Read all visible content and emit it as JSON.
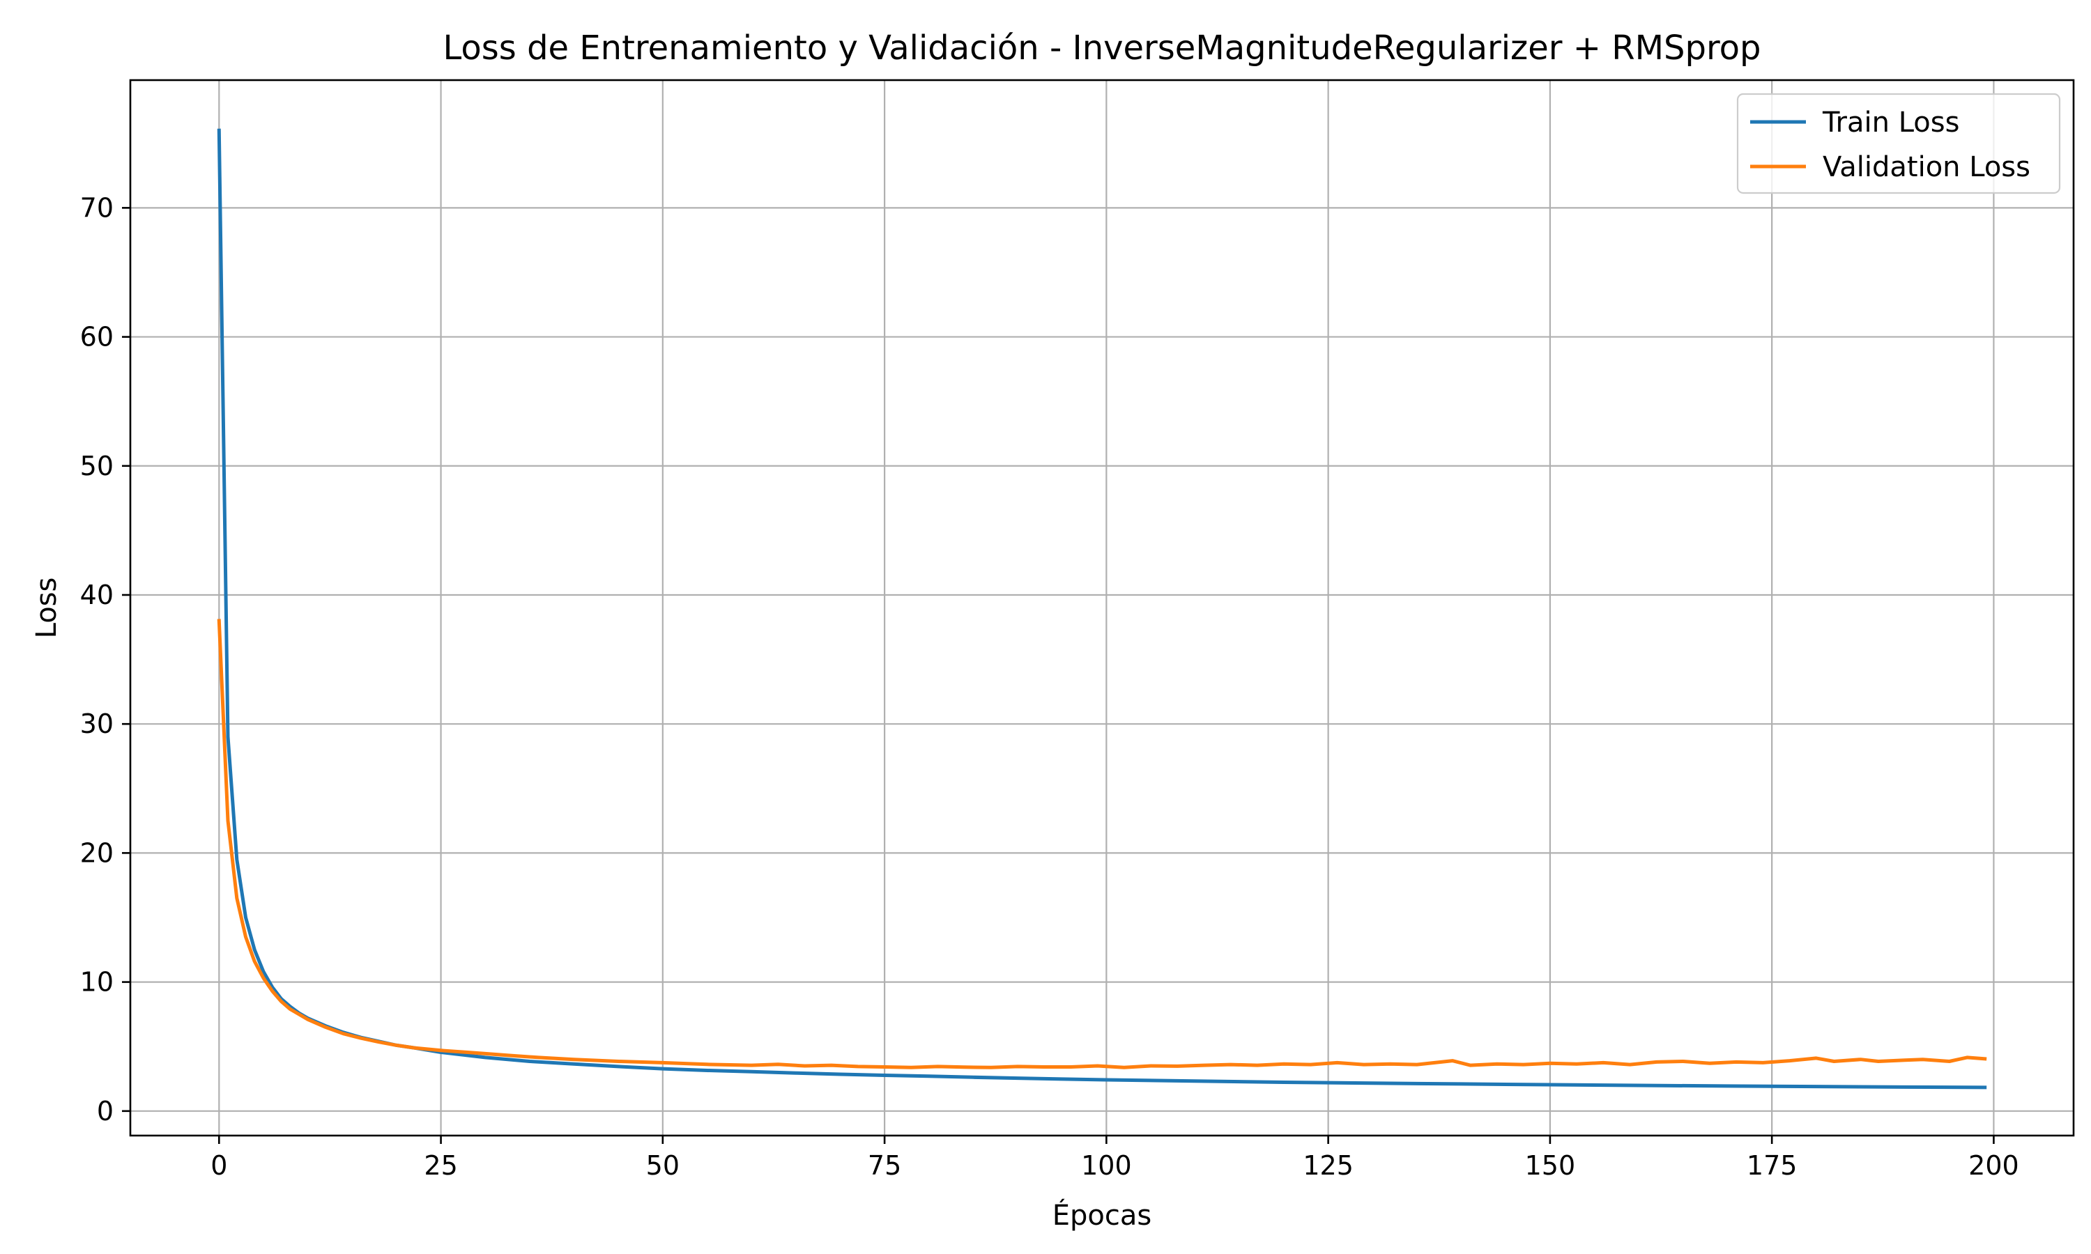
{
  "chart_data": {
    "type": "line",
    "title": "Loss de Entrenamiento y Validación - InverseMagnitudeRegularizer + RMSprop",
    "xlabel": "Épocas",
    "ylabel": "Loss",
    "xlim": [
      -10,
      209
    ],
    "ylim": [
      -1.9,
      79.9
    ],
    "x_ticks": [
      0,
      25,
      50,
      75,
      100,
      125,
      150,
      175,
      200
    ],
    "y_ticks": [
      0,
      10,
      20,
      30,
      40,
      50,
      60,
      70
    ],
    "grid": true,
    "legend_position": "top-right",
    "colors": {
      "train": "#1f77b4",
      "validation": "#ff7f0e"
    },
    "series": [
      {
        "name": "Train Loss",
        "color": "#1f77b4",
        "points": [
          [
            0,
            76.0
          ],
          [
            1,
            29.0
          ],
          [
            2,
            19.5
          ],
          [
            3,
            15.0
          ],
          [
            4,
            12.5
          ],
          [
            5,
            10.8
          ],
          [
            6,
            9.6
          ],
          [
            7,
            8.7
          ],
          [
            8,
            8.1
          ],
          [
            9,
            7.6
          ],
          [
            10,
            7.2
          ],
          [
            12,
            6.6
          ],
          [
            14,
            6.1
          ],
          [
            16,
            5.7
          ],
          [
            18,
            5.4
          ],
          [
            20,
            5.1
          ],
          [
            22,
            4.9
          ],
          [
            25,
            4.55
          ],
          [
            30,
            4.15
          ],
          [
            35,
            3.85
          ],
          [
            40,
            3.65
          ],
          [
            45,
            3.45
          ],
          [
            50,
            3.28
          ],
          [
            55,
            3.15
          ],
          [
            60,
            3.05
          ],
          [
            65,
            2.95
          ],
          [
            70,
            2.85
          ],
          [
            75,
            2.77
          ],
          [
            80,
            2.7
          ],
          [
            85,
            2.62
          ],
          [
            90,
            2.55
          ],
          [
            95,
            2.48
          ],
          [
            100,
            2.42
          ],
          [
            110,
            2.32
          ],
          [
            120,
            2.23
          ],
          [
            130,
            2.16
          ],
          [
            140,
            2.1
          ],
          [
            150,
            2.04
          ],
          [
            160,
            1.99
          ],
          [
            170,
            1.94
          ],
          [
            180,
            1.9
          ],
          [
            190,
            1.86
          ],
          [
            199,
            1.83
          ]
        ]
      },
      {
        "name": "Validation Loss",
        "color": "#ff7f0e",
        "points": [
          [
            0,
            38.0
          ],
          [
            1,
            22.5
          ],
          [
            2,
            16.5
          ],
          [
            3,
            13.5
          ],
          [
            4,
            11.6
          ],
          [
            5,
            10.3
          ],
          [
            6,
            9.3
          ],
          [
            7,
            8.5
          ],
          [
            8,
            7.9
          ],
          [
            9,
            7.5
          ],
          [
            10,
            7.1
          ],
          [
            12,
            6.5
          ],
          [
            14,
            6.0
          ],
          [
            16,
            5.65
          ],
          [
            18,
            5.35
          ],
          [
            20,
            5.1
          ],
          [
            22,
            4.9
          ],
          [
            25,
            4.7
          ],
          [
            28,
            4.55
          ],
          [
            30,
            4.45
          ],
          [
            33,
            4.3
          ],
          [
            36,
            4.15
          ],
          [
            40,
            4.0
          ],
          [
            45,
            3.85
          ],
          [
            50,
            3.75
          ],
          [
            55,
            3.62
          ],
          [
            60,
            3.55
          ],
          [
            63,
            3.62
          ],
          [
            66,
            3.5
          ],
          [
            69,
            3.55
          ],
          [
            72,
            3.45
          ],
          [
            75,
            3.42
          ],
          [
            78,
            3.38
          ],
          [
            81,
            3.45
          ],
          [
            84,
            3.4
          ],
          [
            87,
            3.38
          ],
          [
            90,
            3.45
          ],
          [
            93,
            3.42
          ],
          [
            96,
            3.42
          ],
          [
            99,
            3.5
          ],
          [
            102,
            3.38
          ],
          [
            105,
            3.5
          ],
          [
            108,
            3.48
          ],
          [
            111,
            3.55
          ],
          [
            114,
            3.6
          ],
          [
            117,
            3.55
          ],
          [
            120,
            3.65
          ],
          [
            123,
            3.6
          ],
          [
            126,
            3.75
          ],
          [
            129,
            3.6
          ],
          [
            132,
            3.65
          ],
          [
            135,
            3.6
          ],
          [
            139,
            3.9
          ],
          [
            141,
            3.55
          ],
          [
            144,
            3.65
          ],
          [
            147,
            3.6
          ],
          [
            150,
            3.7
          ],
          [
            153,
            3.65
          ],
          [
            156,
            3.75
          ],
          [
            159,
            3.6
          ],
          [
            162,
            3.8
          ],
          [
            165,
            3.85
          ],
          [
            168,
            3.7
          ],
          [
            171,
            3.8
          ],
          [
            174,
            3.75
          ],
          [
            177,
            3.9
          ],
          [
            180,
            4.1
          ],
          [
            182,
            3.85
          ],
          [
            185,
            4.0
          ],
          [
            187,
            3.85
          ],
          [
            190,
            3.95
          ],
          [
            192,
            4.0
          ],
          [
            195,
            3.85
          ],
          [
            197,
            4.15
          ],
          [
            199,
            4.05
          ]
        ]
      }
    ]
  }
}
